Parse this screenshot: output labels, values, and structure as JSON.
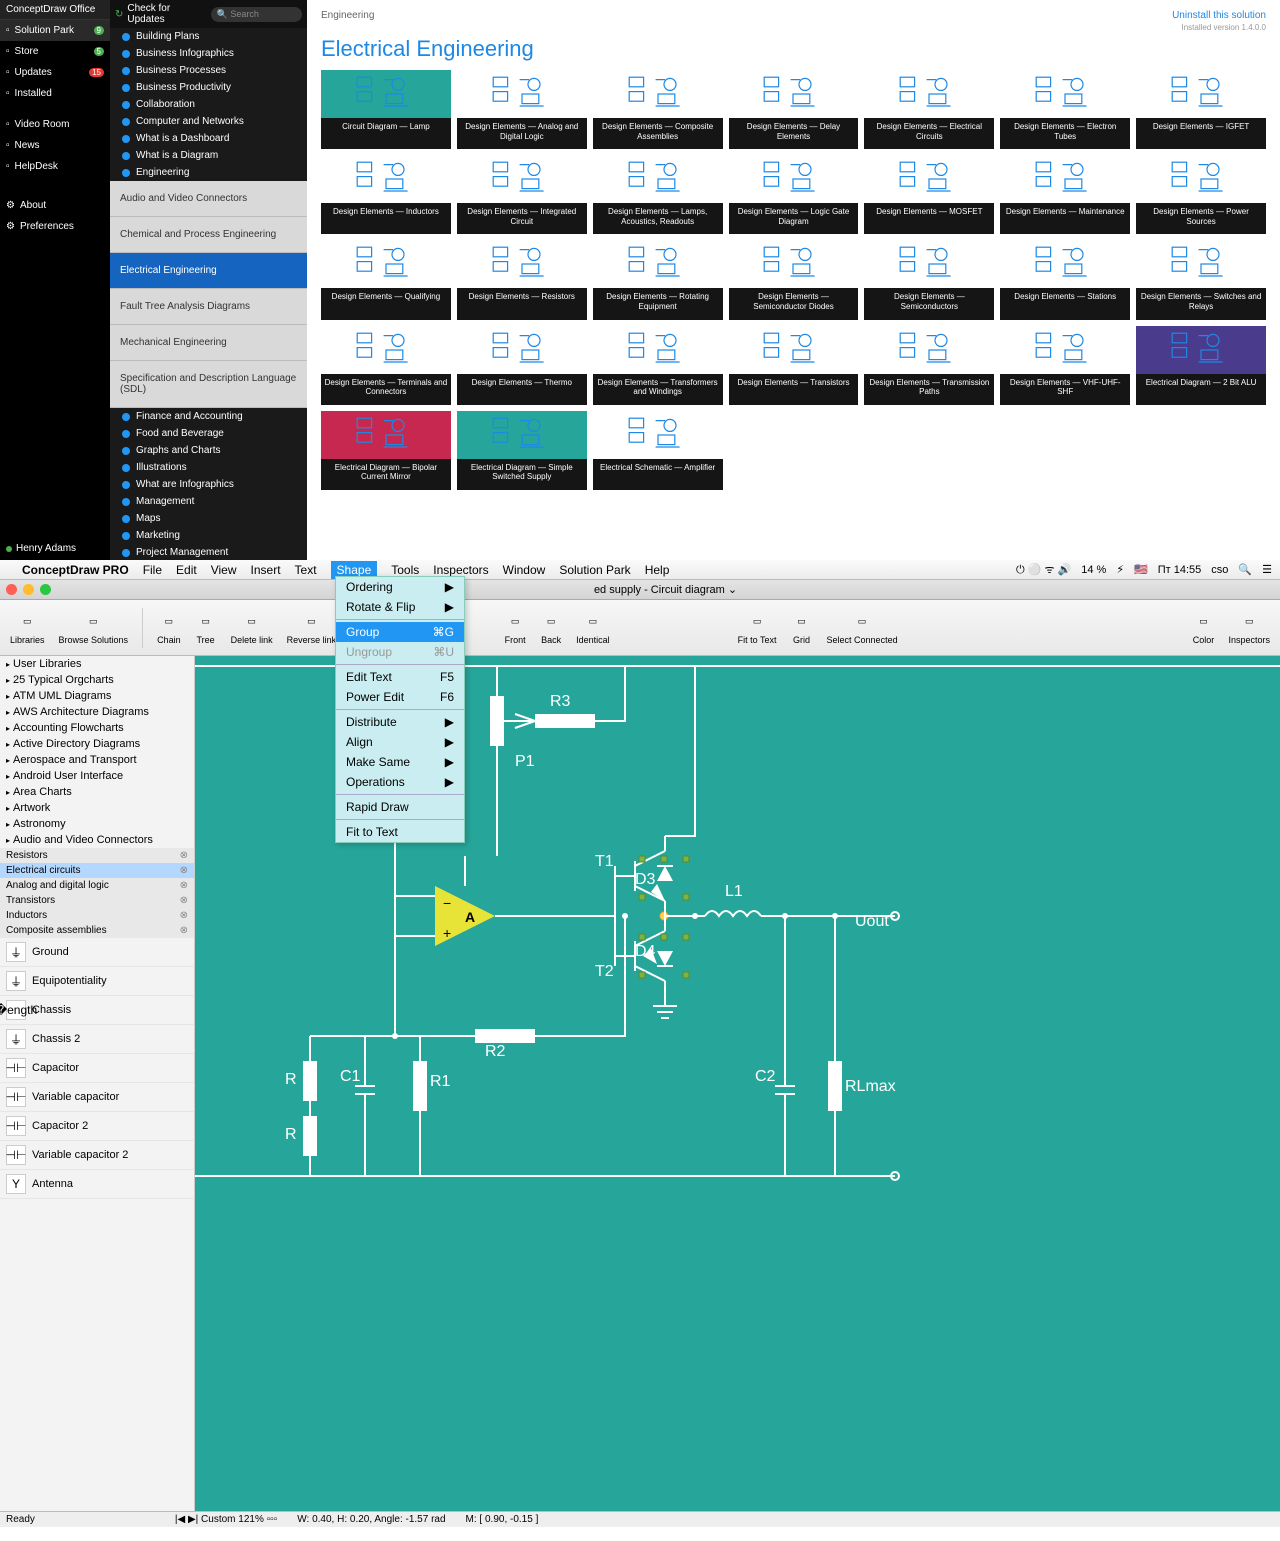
{
  "top": {
    "leftNav": {
      "title": "ConceptDraw Office",
      "items": [
        {
          "label": "Solution Park",
          "badge": "9",
          "badgeColor": "g",
          "selected": true
        },
        {
          "label": "Store",
          "badge": "5",
          "badgeColor": "g"
        },
        {
          "label": "Updates",
          "badge": "15",
          "badgeColor": "r"
        },
        {
          "label": "Installed"
        }
      ],
      "items2": [
        "Video Room",
        "News",
        "HelpDesk"
      ],
      "items3": [
        "About",
        "Preferences"
      ],
      "user": "Henry Adams"
    },
    "midTop": {
      "check": "Check for Updates",
      "search": "Search"
    },
    "tree1": [
      "Building Plans",
      "Business Infographics",
      "Business Processes",
      "Business Productivity",
      "Collaboration",
      "Computer and Networks",
      "What is a Dashboard",
      "What is a Diagram",
      "Engineering"
    ],
    "accordion": [
      "Audio and Video Connectors",
      "Chemical and Process Engineering",
      "Electrical Engineering",
      "Fault Tree Analysis Diagrams",
      "Mechanical Engineering",
      "Specification and Description Language (SDL)"
    ],
    "accordionSel": 2,
    "tree2": [
      "Finance and Accounting",
      "Food and Beverage",
      "Graphs and Charts",
      "Illustrations",
      "What are Infographics",
      "Management",
      "Maps",
      "Marketing",
      "Project Management"
    ],
    "gallery": {
      "breadcrumb": "Engineering",
      "uninstall": "Uninstall this solution",
      "version": "Installed version 1.4.0.0",
      "title": "Electrical Engineering",
      "cards": [
        {
          "label": "Circuit Diagram — Lamp",
          "bg": "teal"
        },
        {
          "label": "Design Elements — Analog and Digital Logic"
        },
        {
          "label": "Design Elements — Composite Assemblies"
        },
        {
          "label": "Design Elements — Delay Elements"
        },
        {
          "label": "Design Elements — Electrical Circuits"
        },
        {
          "label": "Design Elements — Electron Tubes"
        },
        {
          "label": "Design Elements — IGFET"
        },
        {
          "label": "Design Elements — Inductors"
        },
        {
          "label": "Design Elements — Integrated Circuit"
        },
        {
          "label": "Design Elements — Lamps, Acoustics, Readouts"
        },
        {
          "label": "Design Elements — Logic Gate Diagram"
        },
        {
          "label": "Design Elements — MOSFET"
        },
        {
          "label": "Design Elements — Maintenance"
        },
        {
          "label": "Design Elements — Power Sources"
        },
        {
          "label": "Design Elements — Qualifying"
        },
        {
          "label": "Design Elements — Resistors"
        },
        {
          "label": "Design Elements — Rotating Equipment"
        },
        {
          "label": "Design Elements — Semiconductor Diodes"
        },
        {
          "label": "Design Elements — Semiconductors"
        },
        {
          "label": "Design Elements — Stations"
        },
        {
          "label": "Design Elements — Switches and Relays"
        },
        {
          "label": "Design Elements — Terminals and Connectors"
        },
        {
          "label": "Design Elements — Thermo"
        },
        {
          "label": "Design Elements — Transformers and Windings"
        },
        {
          "label": "Design Elements — Transistors"
        },
        {
          "label": "Design Elements — Transmission Paths"
        },
        {
          "label": "Design Elements — VHF-UHF-SHF"
        },
        {
          "label": "Electrical Diagram — 2 Bit ALU",
          "bg": "violet"
        },
        {
          "label": "Electrical Diagram — Bipolar Current Mirror",
          "bg": "red"
        },
        {
          "label": "Electrical Diagram — Simple Switched Supply",
          "bg": "teal"
        },
        {
          "label": "Electrical Schematic — Amplifier"
        }
      ]
    }
  },
  "app": {
    "name": "ConceptDraw PRO",
    "menus": [
      "File",
      "Edit",
      "View",
      "Insert",
      "Text",
      "Shape",
      "Tools",
      "Inspectors",
      "Window",
      "Solution Park",
      "Help"
    ],
    "menuSel": 5,
    "sysRight": {
      "battery": "14 %",
      "date": "Пт 14:55",
      "user": "cso"
    },
    "docTitle": "ed supply - Circuit diagram",
    "toolbar": {
      "left": [
        "Libraries",
        "Browse Solutions"
      ],
      "mid1": [
        "Chain",
        "Tree",
        "Delete link",
        "Reverse link"
      ],
      "mid2": [
        "Front",
        "Back",
        "Identical"
      ],
      "mid3": [
        "Fit to Text",
        "Grid",
        "Select Connected"
      ],
      "right": [
        "Color",
        "Inspectors"
      ]
    },
    "shapeMenu": [
      {
        "label": "Ordering",
        "arrow": true
      },
      {
        "label": "Rotate & Flip",
        "arrow": true
      },
      {
        "sep": true
      },
      {
        "label": "Group",
        "kbd": "⌘G",
        "sel": true
      },
      {
        "label": "Ungroup",
        "kbd": "⌘U",
        "dis": true
      },
      {
        "sep": true
      },
      {
        "label": "Edit Text",
        "kbd": "F5"
      },
      {
        "label": "Power Edit",
        "kbd": "F6"
      },
      {
        "sep": true
      },
      {
        "label": "Distribute",
        "arrow": true
      },
      {
        "label": "Align",
        "arrow": true
      },
      {
        "label": "Make Same",
        "arrow": true
      },
      {
        "label": "Operations",
        "arrow": true
      },
      {
        "sep": true
      },
      {
        "label": "Rapid Draw"
      },
      {
        "sep": true
      },
      {
        "label": "Fit to Text"
      }
    ],
    "libPanel": {
      "cats": [
        "User Libraries",
        "25 Typical Orgcharts",
        "ATM UML Diagrams",
        "AWS Architecture Diagrams",
        "Accounting Flowcharts",
        "Active Directory Diagrams",
        "Aerospace and Transport",
        "Android User Interface",
        "Area Charts",
        "Artwork",
        "Astronomy",
        "Audio and Video Connectors"
      ],
      "subs": [
        "Resistors",
        "Electrical circuits",
        "Analog and digital logic",
        "Transistors",
        "Inductors",
        "Composite assemblies"
      ],
      "subSel": 1,
      "shapes": [
        "Ground",
        "Equipotentiality",
        "Chassis",
        "Chassis 2",
        "Capacitor",
        "Variable capacitor",
        "Capacitor 2",
        "Variable capacitor 2",
        "Antenna"
      ]
    },
    "circuit": {
      "bg": "#26a69a",
      "labels": {
        "R3": "R3",
        "P1": "P1",
        "T1": "T1",
        "T2": "T2",
        "D3": "D3",
        "D4": "D4",
        "L1": "L1",
        "Uout": "Uout",
        "R": "R",
        "C1": "C1",
        "R1": "R1",
        "R2": "R2",
        "C2": "C2",
        "RLmax": "RLmax",
        "A": "A"
      }
    },
    "status": {
      "ready": "Ready",
      "zoom": "Custom 121%",
      "wh": "W: 0.40,  H: 0.20,  Angle: -1.57 rad",
      "m": "M: [ 0.90, -0.15 ]"
    }
  }
}
